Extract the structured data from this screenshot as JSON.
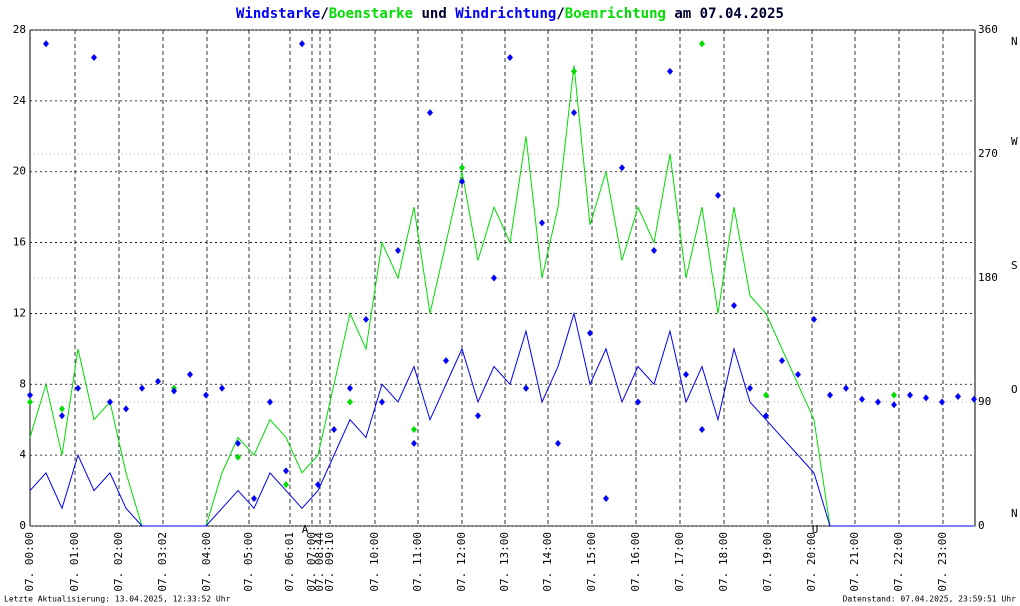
{
  "chart_data": {
    "type": "wind",
    "title_joiners": [
      "/",
      " und ",
      "/",
      " am 07.04.2025"
    ],
    "footer_left": "Letzte Aktualisierung: 13.04.2025, 12:33:52 Uhr",
    "footer_right": "Datenstand: 07.04.2025, 23:59:51 Uhr",
    "grid": true,
    "xlim": [
      0,
      945
    ],
    "xticks": [
      {
        "value": 0,
        "label": "07. 00:00"
      },
      {
        "value": 45,
        "label": "07. 01:00"
      },
      {
        "value": 89,
        "label": "07. 02:00"
      },
      {
        "value": 133,
        "label": "07. 03:02"
      },
      {
        "value": 177,
        "label": "07. 04:00"
      },
      {
        "value": 219,
        "label": "07. 05:00"
      },
      {
        "value": 260,
        "label": "07. 06:01"
      },
      {
        "value": 282,
        "label": "07. 07:00"
      },
      {
        "value": 290,
        "label": "07. 08:44"
      },
      {
        "value": 300,
        "label": "07. 09:10"
      },
      {
        "value": 345,
        "label": "07. 10:00"
      },
      {
        "value": 388,
        "label": "07. 11:00"
      },
      {
        "value": 432,
        "label": "07. 12:00"
      },
      {
        "value": 475,
        "label": "07. 13:00"
      },
      {
        "value": 518,
        "label": "07. 14:00"
      },
      {
        "value": 562,
        "label": "07. 15:00"
      },
      {
        "value": 606,
        "label": "07. 16:00"
      },
      {
        "value": 650,
        "label": "07. 17:00"
      },
      {
        "value": 694,
        "label": "07. 18:00"
      },
      {
        "value": 738,
        "label": "07. 19:00"
      },
      {
        "value": 782,
        "label": "07. 20:00"
      },
      {
        "value": 825,
        "label": "07. 21:00"
      },
      {
        "value": 869,
        "label": "07. 22:00"
      },
      {
        "value": 913,
        "label": "07. 23:00"
      }
    ],
    "ylim": [
      0,
      28
    ],
    "yticks": [
      0,
      4,
      8,
      12,
      16,
      20,
      24,
      28
    ],
    "y2lim": [
      0,
      360
    ],
    "y2ticks": [
      0,
      90,
      180,
      270,
      360
    ],
    "y2tick_letters": [
      "N",
      "O",
      "S",
      "W",
      "N"
    ],
    "annotations": [
      {
        "x": 275,
        "text": "A"
      },
      {
        "x": 785,
        "text": "U"
      }
    ],
    "annotation_color": "#cc0000",
    "x": [
      0,
      16,
      32,
      48,
      64,
      80,
      96,
      112,
      128,
      144,
      160,
      176,
      192,
      208,
      224,
      240,
      256,
      272,
      288,
      304,
      320,
      336,
      352,
      368,
      384,
      400,
      416,
      432,
      448,
      464,
      480,
      496,
      512,
      528,
      544,
      560,
      576,
      592,
      608,
      624,
      640,
      656,
      672,
      688,
      704,
      720,
      736,
      752,
      768,
      784,
      800,
      816,
      832,
      848,
      864,
      880,
      896,
      912,
      928,
      944
    ],
    "series": [
      {
        "name": "Windstarke",
        "color": "#0000ff",
        "kind": "line",
        "values": [
          2,
          3,
          1,
          4,
          2,
          3,
          1,
          0,
          0,
          0,
          0,
          0,
          1,
          2,
          1,
          3,
          2,
          1,
          2,
          4,
          6,
          5,
          8,
          7,
          9,
          6,
          8,
          10,
          7,
          9,
          8,
          11,
          7,
          9,
          12,
          8,
          10,
          7,
          9,
          8,
          11,
          7,
          9,
          6,
          10,
          7,
          6,
          5,
          4,
          3,
          0,
          0,
          0,
          0,
          0,
          0,
          0,
          0,
          0,
          0
        ]
      },
      {
        "name": "Boenstarke",
        "color": "#00dd00",
        "kind": "line",
        "values": [
          5,
          8,
          4,
          10,
          6,
          7,
          3,
          0,
          0,
          0,
          0,
          0,
          3,
          5,
          4,
          6,
          5,
          3,
          4,
          8,
          12,
          10,
          16,
          14,
          18,
          12,
          16,
          20,
          15,
          18,
          16,
          22,
          14,
          18,
          26,
          17,
          20,
          15,
          18,
          16,
          21,
          14,
          18,
          12,
          18,
          13,
          12,
          10,
          8,
          6,
          0,
          0,
          0,
          0,
          0,
          0,
          0,
          0,
          0,
          0
        ]
      },
      {
        "name": "Windrichtung",
        "color": "#0000ff",
        "kind": "dots",
        "axis": "y2",
        "values": [
          95,
          350,
          80,
          100,
          340,
          90,
          85,
          100,
          105,
          98,
          110,
          95,
          100,
          60,
          20,
          90,
          40,
          350,
          30,
          70,
          100,
          150,
          90,
          200,
          60,
          300,
          120,
          250,
          80,
          180,
          340,
          100,
          220,
          60,
          300,
          140,
          20,
          260,
          90,
          200,
          330,
          110,
          70,
          240,
          160,
          100,
          80,
          120,
          110,
          150,
          95,
          100,
          92,
          90,
          88,
          95,
          93,
          90,
          94,
          92
        ]
      },
      {
        "name": "Boenrichtung",
        "color": "#00dd00",
        "kind": "dots",
        "axis": "y2",
        "values": [
          90,
          null,
          85,
          null,
          null,
          null,
          null,
          null,
          null,
          100,
          null,
          null,
          null,
          50,
          null,
          null,
          30,
          null,
          null,
          null,
          90,
          null,
          null,
          null,
          70,
          null,
          null,
          260,
          null,
          null,
          null,
          100,
          null,
          null,
          330,
          null,
          null,
          null,
          90,
          null,
          null,
          null,
          350,
          null,
          null,
          null,
          95,
          null,
          null,
          null,
          null,
          null,
          null,
          null,
          95,
          null,
          null,
          null,
          null,
          null
        ]
      }
    ]
  }
}
